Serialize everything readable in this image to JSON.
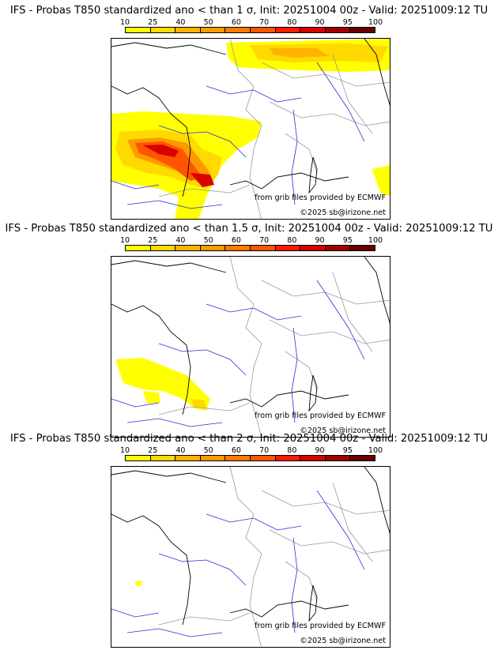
{
  "panels": [
    {
      "title": "IFS - Probas T850  standardized ano < than 1 σ, Init: 20251004 00z - Valid: 20251009:12 TU",
      "source_text": "from grib files provided by ECMWF",
      "copyright_text": "©2025 sb@irizone.net"
    },
    {
      "title": "IFS - Probas T850  standardized ano < than 1.5 σ, Init: 20251004 00z - Valid: 20251009:12 TU",
      "source_text": "from grib files provided by ECMWF",
      "copyright_text": "©2025 sb@irizone.net"
    },
    {
      "title": "IFS - Probas T850  standardized ano < than 2 σ, Init: 20251004 00z - Valid: 20251009:12 TU",
      "source_text": "from grib files provided by ECMWF",
      "copyright_text": "©2025 sb@irizone.net"
    }
  ],
  "colorbar": {
    "ticks": [
      "10",
      "25",
      "40",
      "50",
      "60",
      "70",
      "80",
      "90",
      "95",
      "100"
    ],
    "colors": [
      "#ffff00",
      "#ffd900",
      "#ffb300",
      "#ff9900",
      "#ff7a00",
      "#ff5500",
      "#ff1a00",
      "#d90000",
      "#a00000",
      "#6a0000"
    ]
  },
  "map_colors": {
    "coast": "#000000",
    "rivers": "#2b2bd9",
    "borders": "#999999"
  }
}
